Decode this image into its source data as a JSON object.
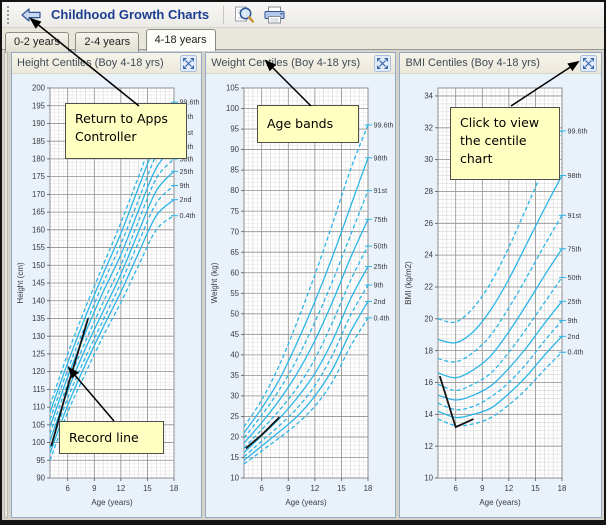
{
  "window": {
    "title": "Childhood Growth Charts"
  },
  "toolbar": {
    "icons": [
      "back-arrow-icon",
      "magnifier-icon",
      "printer-icon"
    ]
  },
  "tabs": {
    "items": [
      {
        "label": "0-2 years",
        "active": false
      },
      {
        "label": "2-4 years",
        "active": false
      },
      {
        "label": "4-18 years",
        "active": true
      }
    ]
  },
  "panel_header_icon": "expand-icon",
  "colors": {
    "centile_line": "#2ab5e8",
    "record_line": "#141414",
    "grid_major": "#909090",
    "grid_mid": "#d2d2d2",
    "grid_minor": "#e7e7e7",
    "axis_text": "#3c3c3c",
    "panel_bg": "#e9f1fb",
    "callout_bg": "#ffffc1",
    "title_text": "#1c3e91"
  },
  "centile_names": [
    "99.6th",
    "98th",
    "91st",
    "75th",
    "50th",
    "25th",
    "9th",
    "2nd",
    "0.4th"
  ],
  "chart_data": [
    {
      "type": "line",
      "title": "Height Centiles (Boy 4-18 yrs)",
      "xlabel": "Age (years)",
      "ylabel": "Height (cm)",
      "x": [
        4,
        6,
        8,
        10,
        12,
        14,
        16,
        18
      ],
      "xlim": [
        4,
        18
      ],
      "x_major_ticks": [
        6,
        9,
        12,
        15,
        18
      ],
      "ylim": [
        90,
        200
      ],
      "y_tick_step": 5,
      "y_minor": 1,
      "y_mid": null,
      "series": [
        {
          "name": "99.6th",
          "dashed": true,
          "values": [
            110.5,
            125,
            138,
            150,
            162,
            175,
            188,
            196
          ]
        },
        {
          "name": "98th",
          "dashed": false,
          "values": [
            108.5,
            122.5,
            135.5,
            147.5,
            159,
            172,
            184.5,
            192
          ]
        },
        {
          "name": "91st",
          "dashed": true,
          "values": [
            106.5,
            120.5,
            133,
            145,
            156,
            168.5,
            181,
            187.5
          ]
        },
        {
          "name": "75th",
          "dashed": false,
          "values": [
            104.5,
            118.5,
            131,
            142.5,
            153,
            165.5,
            177.5,
            183.5
          ]
        },
        {
          "name": "50th",
          "dashed": true,
          "values": [
            102.5,
            116.5,
            128.5,
            139.5,
            150,
            162.5,
            174.5,
            180
          ]
        },
        {
          "name": "25th",
          "dashed": false,
          "values": [
            100.5,
            114.5,
            126.5,
            137,
            147.5,
            159.5,
            171,
            176.5
          ]
        },
        {
          "name": "9th",
          "dashed": true,
          "values": [
            98.5,
            112.5,
            124,
            134.5,
            145,
            156.5,
            167.5,
            172.5
          ]
        },
        {
          "name": "2nd",
          "dashed": false,
          "values": [
            97,
            110.5,
            122,
            132.5,
            142.5,
            153.5,
            164,
            168.5
          ]
        },
        {
          "name": "0.4th",
          "dashed": true,
          "values": [
            95,
            108.5,
            119.5,
            130,
            139.5,
            150,
            160,
            164
          ]
        }
      ],
      "record_line": [
        [
          4.15,
          99
        ],
        [
          6.2,
          117.5
        ],
        [
          8.3,
          135
        ]
      ]
    },
    {
      "type": "line",
      "title": "Weight Centiles (Boy 4-18 yrs)",
      "xlabel": "Age (years)",
      "ylabel": "Weight (kg)",
      "x": [
        4,
        6,
        8,
        10,
        12,
        14,
        16,
        18
      ],
      "xlim": [
        4,
        18
      ],
      "x_major_ticks": [
        6,
        9,
        12,
        15,
        18
      ],
      "ylim": [
        10,
        105
      ],
      "y_tick_step": 5,
      "y_minor": 1,
      "y_mid": null,
      "series": [
        {
          "name": "99.6th",
          "dashed": true,
          "values": [
            22.5,
            29,
            37.5,
            48,
            59.5,
            72,
            85,
            96
          ]
        },
        {
          "name": "98th",
          "dashed": false,
          "values": [
            21,
            27,
            34,
            43,
            53,
            64,
            76,
            88
          ]
        },
        {
          "name": "91st",
          "dashed": true,
          "values": [
            19.8,
            25.3,
            31.5,
            39,
            48,
            58,
            69,
            80
          ]
        },
        {
          "name": "75th",
          "dashed": false,
          "values": [
            18.5,
            23.5,
            29,
            35.5,
            43.5,
            53,
            63.5,
            73
          ]
        },
        {
          "name": "50th",
          "dashed": true,
          "values": [
            17.3,
            21.8,
            26.5,
            32,
            39,
            48,
            58,
            66.5
          ]
        },
        {
          "name": "25th",
          "dashed": false,
          "values": [
            16.2,
            20.3,
            24.5,
            29.5,
            35.5,
            43.5,
            53.5,
            61.5
          ]
        },
        {
          "name": "9th",
          "dashed": true,
          "values": [
            15.2,
            19,
            22.8,
            27,
            32.5,
            40,
            49.5,
            57
          ]
        },
        {
          "name": "2nd",
          "dashed": false,
          "values": [
            14.3,
            17.8,
            21.3,
            25,
            30,
            36.5,
            45.5,
            53
          ]
        },
        {
          "name": "0.4th",
          "dashed": true,
          "values": [
            13.4,
            16.6,
            19.8,
            23.2,
            27.5,
            33.5,
            42,
            49
          ]
        }
      ],
      "record_line": [
        [
          4.2,
          17.2
        ],
        [
          6,
          20.5
        ],
        [
          8,
          24.8
        ]
      ]
    },
    {
      "type": "line",
      "title": "BMI Centiles (Boy 4-18 yrs)",
      "xlabel": "Age (years)",
      "ylabel": "BMI (kg/m2)",
      "x": [
        4,
        6,
        8,
        10,
        12,
        14,
        16,
        18
      ],
      "xlim": [
        4,
        18
      ],
      "x_major_ticks": [
        6,
        9,
        12,
        15,
        18
      ],
      "ylim": [
        10,
        34.5
      ],
      "y_tick_step": 2,
      "y_minor": 0.25,
      "y_mid": 0.5,
      "series": [
        {
          "name": "99.6th",
          "dashed": true,
          "values": [
            20,
            19.8,
            20.7,
            22.3,
            24.5,
            27,
            29.5,
            31.8
          ]
        },
        {
          "name": "98th",
          "dashed": false,
          "values": [
            18.7,
            18.5,
            19.2,
            20.6,
            22.5,
            24.7,
            26.9,
            29
          ]
        },
        {
          "name": "91st",
          "dashed": true,
          "values": [
            17.5,
            17.3,
            17.9,
            19,
            20.7,
            22.6,
            24.6,
            26.5
          ]
        },
        {
          "name": "75th",
          "dashed": false,
          "values": [
            16.6,
            16.3,
            16.8,
            17.7,
            19.2,
            20.9,
            22.7,
            24.4
          ]
        },
        {
          "name": "50th",
          "dashed": true,
          "values": [
            15.9,
            15.5,
            15.9,
            16.6,
            17.9,
            19.4,
            21,
            22.6
          ]
        },
        {
          "name": "25th",
          "dashed": false,
          "values": [
            15.2,
            14.9,
            15.2,
            15.8,
            16.9,
            18.2,
            19.7,
            21.1
          ]
        },
        {
          "name": "9th",
          "dashed": true,
          "values": [
            14.7,
            14.3,
            14.5,
            15.1,
            16,
            17.2,
            18.6,
            19.9
          ]
        },
        {
          "name": "2nd",
          "dashed": false,
          "values": [
            14.2,
            13.8,
            14,
            14.4,
            15.3,
            16.4,
            17.7,
            18.9
          ]
        },
        {
          "name": "0.4th",
          "dashed": true,
          "values": [
            13.7,
            13.3,
            13.4,
            13.8,
            14.6,
            15.6,
            16.8,
            17.9
          ]
        }
      ],
      "record_line": [
        [
          4.2,
          16.4
        ],
        [
          6,
          13.2
        ],
        [
          8,
          13.7
        ]
      ]
    }
  ],
  "annotations": [
    {
      "id": "return-to-apps-controller",
      "text": "Return to Apps Controller"
    },
    {
      "id": "age-bands",
      "text": "Age bands"
    },
    {
      "id": "click-to-view-centile-chart",
      "text": "Click to view the centile chart"
    },
    {
      "id": "record-line",
      "text": "Record line"
    }
  ]
}
